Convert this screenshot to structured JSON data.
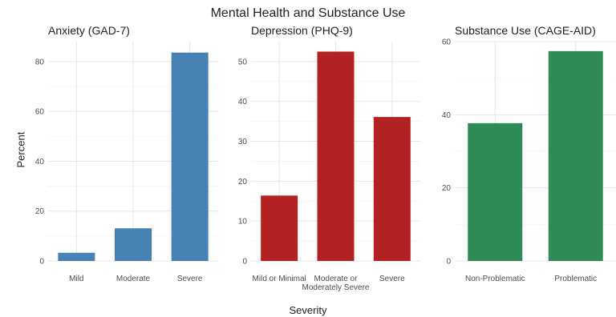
{
  "figure": {
    "title": "Mental Health and Substance Use",
    "ylabel": "Percent",
    "xlabel": "Severity"
  },
  "chart_data": [
    {
      "type": "bar",
      "title": "Anxiety (GAD-7)",
      "categories": [
        "Mild",
        "Moderate",
        "Severe"
      ],
      "values": [
        3.3,
        13.1,
        83.6
      ],
      "ylim": [
        0,
        88
      ],
      "yticks": [
        0,
        20,
        40,
        60,
        80
      ],
      "color": "#4682B4",
      "grid": true
    },
    {
      "type": "bar",
      "title": "Depression (PHQ-9)",
      "categories": [
        [
          "Mild or Minimal"
        ],
        [
          "Moderate or",
          "Moderately Severe"
        ],
        [
          "Severe"
        ]
      ],
      "values": [
        16.4,
        52.5,
        36.1
      ],
      "ylim": [
        0,
        55
      ],
      "yticks": [
        0,
        10,
        20,
        30,
        40,
        50
      ],
      "color": "#B22222",
      "grid": true
    },
    {
      "type": "bar",
      "title": "Substance Use (CAGE-AID)",
      "categories": [
        "Non-Problematic",
        "Problematic"
      ],
      "values": [
        37.7,
        57.4
      ],
      "ylim": [
        0,
        60
      ],
      "yticks": [
        0,
        20,
        40,
        60
      ],
      "color": "#2E8B57",
      "grid": true
    }
  ]
}
